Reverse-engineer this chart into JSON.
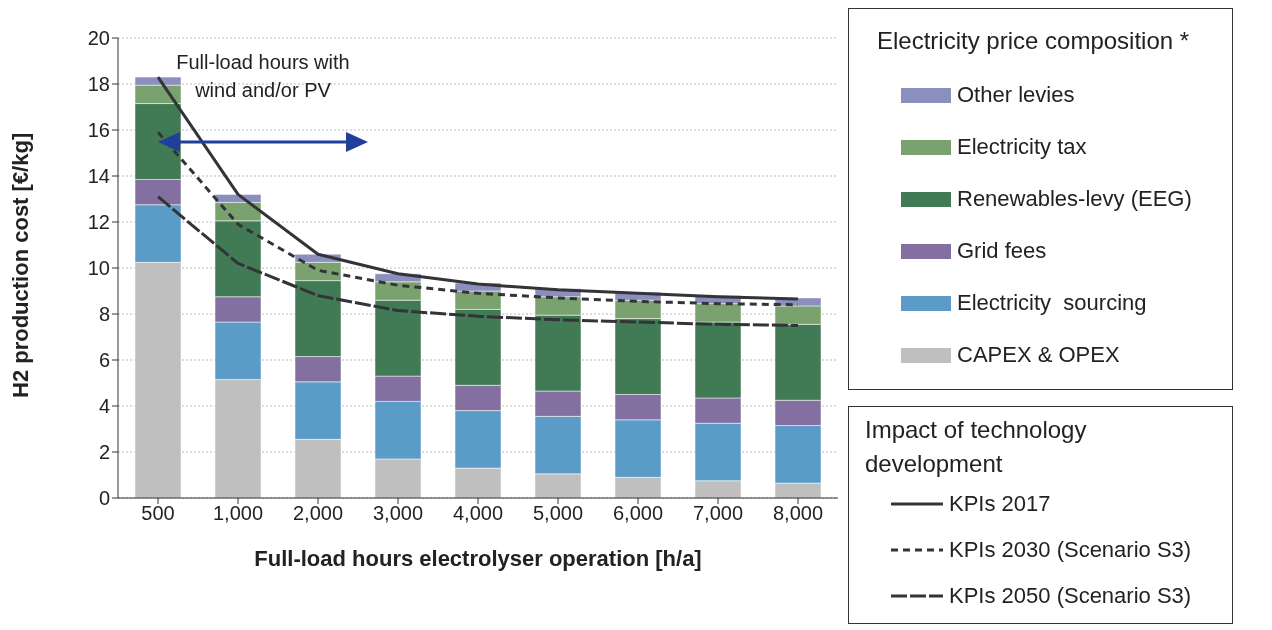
{
  "chart_data": {
    "type": "bar",
    "stacked": true,
    "xlabel": "Full-load hours electrolyser operation [h/a]",
    "ylabel": "H2 production cost [€/kg]",
    "categories": [
      "500",
      "1,000",
      "2,000",
      "3,000",
      "4,000",
      "5,000",
      "6,000",
      "7,000",
      "8,000"
    ],
    "ylim": [
      0,
      20
    ],
    "yticks": [
      0,
      2,
      4,
      6,
      8,
      10,
      12,
      14,
      16,
      18,
      20
    ],
    "grid": "y",
    "legend": "right",
    "legend_title": "Electricity price composition *",
    "annotations": [
      "Full-load hours with wind and/or PV",
      "Impact of technology development"
    ],
    "series": [
      {
        "name": "CAPEX & OPEX",
        "color": "#bfbfbf",
        "values": [
          10.25,
          5.15,
          2.55,
          1.7,
          1.3,
          1.05,
          0.9,
          0.75,
          0.65
        ]
      },
      {
        "name": "Electricity  sourcing",
        "color": "#5b9bc8",
        "values": [
          2.5,
          2.5,
          2.5,
          2.5,
          2.5,
          2.5,
          2.5,
          2.5,
          2.5
        ]
      },
      {
        "name": "Grid fees",
        "color": "#8470a0",
        "values": [
          1.1,
          1.1,
          1.1,
          1.1,
          1.1,
          1.1,
          1.1,
          1.1,
          1.1
        ]
      },
      {
        "name": "Renewables-levy (EEG)",
        "color": "#417b55",
        "values": [
          3.3,
          3.3,
          3.3,
          3.3,
          3.3,
          3.3,
          3.3,
          3.3,
          3.3
        ]
      },
      {
        "name": "Electricity tax",
        "color": "#7aa26e",
        "values": [
          0.8,
          0.8,
          0.8,
          0.8,
          0.8,
          0.8,
          0.8,
          0.8,
          0.8
        ]
      },
      {
        "name": "Other levies",
        "color": "#8a8fbe",
        "values": [
          0.35,
          0.35,
          0.35,
          0.35,
          0.35,
          0.35,
          0.35,
          0.35,
          0.35
        ]
      },
      {
        "name": "KPIs 2017",
        "type": "line",
        "line_style": "solid",
        "color": "#333338",
        "values": [
          18.3,
          13.2,
          10.6,
          9.75,
          9.3,
          9.05,
          8.9,
          8.75,
          8.65
        ]
      },
      {
        "name": "KPIs 2030 (Scenario S3)",
        "type": "line",
        "line_style": "dashed",
        "color": "#333338",
        "values": [
          15.9,
          11.9,
          9.9,
          9.25,
          8.9,
          8.7,
          8.55,
          8.45,
          8.4
        ]
      },
      {
        "name": "KPIs 2050 (Scenario S3)",
        "type": "line",
        "line_style": "dashed",
        "color": "#333338",
        "values": [
          13.1,
          10.2,
          8.8,
          8.15,
          7.9,
          7.75,
          7.65,
          7.55,
          7.5
        ]
      }
    ]
  }
}
